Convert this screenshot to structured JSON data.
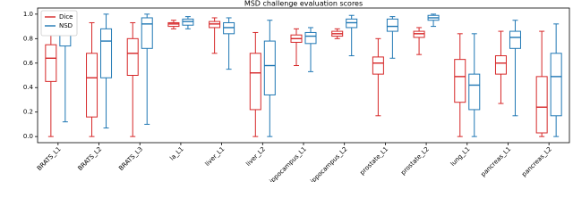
{
  "chart_data": {
    "type": "box",
    "title": "MSD challenge evaluation scores",
    "categories": [
      "BRATS_L1",
      "BRATS_L2",
      "BRATS_L3",
      "la_L1",
      "liver_L1",
      "liver_L2",
      "hippocampus_L1",
      "hippocampus_L2",
      "prostate_L1",
      "prostate_L2",
      "lung_L1",
      "pancreas_L1",
      "pancreas_L2"
    ],
    "series": [
      {
        "name": "Dice",
        "color": "#d62728",
        "min": [
          0.0,
          0.0,
          0.0,
          0.88,
          0.68,
          0.0,
          0.58,
          0.8,
          0.17,
          0.67,
          0.0,
          0.27,
          0.0
        ],
        "q1": [
          0.45,
          0.16,
          0.5,
          0.9,
          0.89,
          0.22,
          0.77,
          0.82,
          0.51,
          0.81,
          0.28,
          0.51,
          0.03
        ],
        "median": [
          0.64,
          0.48,
          0.68,
          0.92,
          0.92,
          0.52,
          0.8,
          0.84,
          0.6,
          0.84,
          0.49,
          0.6,
          0.24
        ],
        "q3": [
          0.75,
          0.68,
          0.8,
          0.93,
          0.94,
          0.68,
          0.83,
          0.86,
          0.65,
          0.86,
          0.63,
          0.66,
          0.49
        ],
        "max": [
          0.92,
          0.93,
          0.93,
          0.95,
          0.97,
          0.85,
          0.88,
          0.88,
          0.8,
          0.89,
          0.84,
          0.86,
          0.86
        ]
      },
      {
        "name": "NSD",
        "color": "#1f77b4",
        "min": [
          0.12,
          0.07,
          0.1,
          0.88,
          0.55,
          0.0,
          0.53,
          0.66,
          0.64,
          0.9,
          0.0,
          0.17,
          0.0
        ],
        "q1": [
          0.74,
          0.48,
          0.72,
          0.91,
          0.84,
          0.34,
          0.76,
          0.89,
          0.86,
          0.95,
          0.22,
          0.72,
          0.17
        ],
        "median": [
          0.83,
          0.78,
          0.92,
          0.94,
          0.89,
          0.58,
          0.82,
          0.93,
          0.9,
          0.97,
          0.42,
          0.81,
          0.49
        ],
        "q3": [
          0.92,
          0.88,
          0.97,
          0.96,
          0.93,
          0.78,
          0.85,
          0.96,
          0.96,
          0.99,
          0.51,
          0.86,
          0.68
        ],
        "max": [
          1.0,
          1.0,
          1.0,
          0.98,
          0.97,
          0.95,
          0.89,
          0.99,
          0.98,
          1.0,
          0.84,
          0.95,
          0.92
        ]
      }
    ],
    "ylim": [
      -0.05,
      1.05
    ],
    "yticks": [
      {
        "value": 0,
        "label": "0.0"
      },
      {
        "value": 0.2,
        "label": "0.2"
      },
      {
        "value": 0.4,
        "label": "0.4"
      },
      {
        "value": 0.6,
        "label": "0.6"
      },
      {
        "value": 0.8,
        "label": "0.8"
      },
      {
        "value": 1,
        "label": "1.0"
      }
    ],
    "legend": "upper left"
  }
}
